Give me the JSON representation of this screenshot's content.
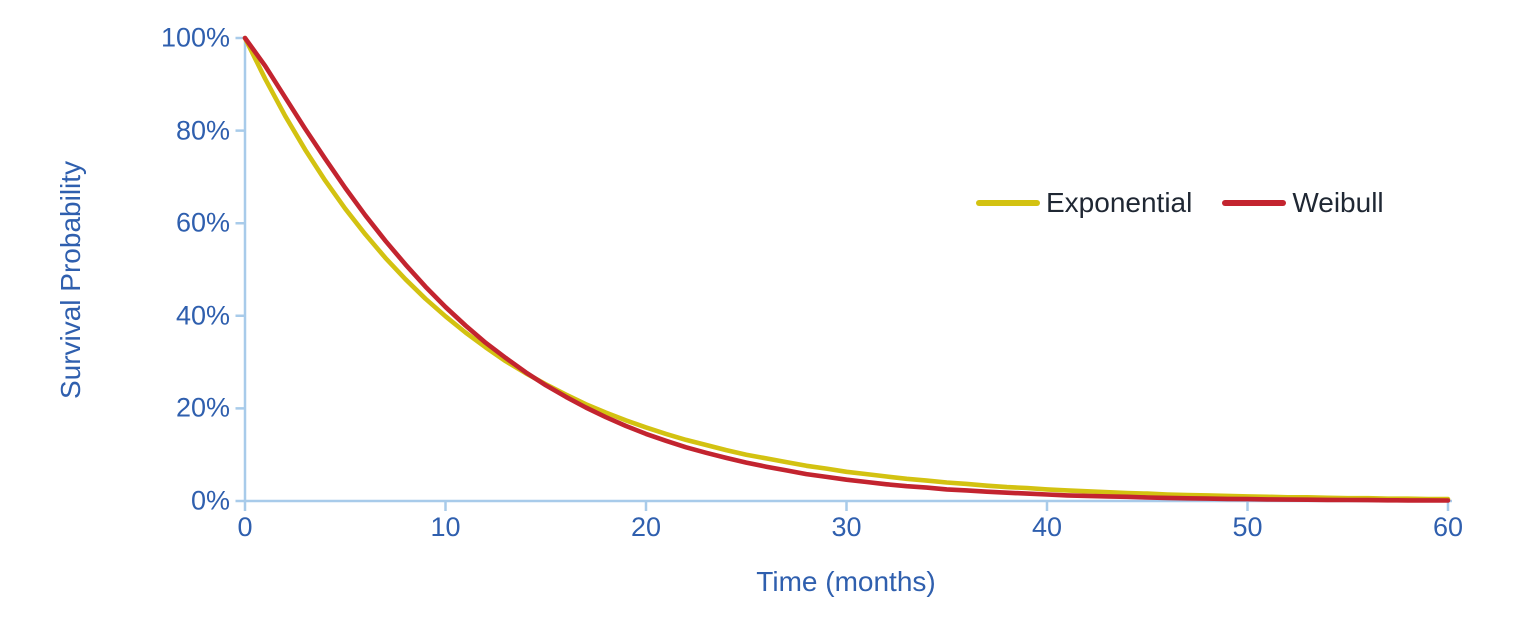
{
  "chart_data": {
    "type": "line",
    "title": "",
    "xlabel": "Time (months)",
    "ylabel": "Survival Probability",
    "xlim": [
      0,
      60
    ],
    "ylim": [
      0,
      100
    ],
    "grid": false,
    "legend_position": "upper-right-inside",
    "x_ticks": [
      0,
      10,
      20,
      30,
      40,
      50,
      60
    ],
    "y_ticks_percent": [
      0,
      20,
      40,
      60,
      80,
      100
    ],
    "x": [
      0,
      1,
      2,
      3,
      4,
      5,
      6,
      7,
      8,
      9,
      10,
      11,
      12,
      13,
      14,
      15,
      16,
      17,
      18,
      19,
      20,
      21,
      22,
      23,
      24,
      25,
      26,
      27,
      28,
      29,
      30,
      31,
      32,
      33,
      34,
      35,
      36,
      37,
      38,
      39,
      40,
      41,
      42,
      43,
      44,
      45,
      46,
      47,
      48,
      49,
      50,
      51,
      52,
      53,
      54,
      55,
      56,
      57,
      58,
      59,
      60
    ],
    "series": [
      {
        "name": "Exponential",
        "color": "#D3C211",
        "values": [
          100,
          91.2,
          83.2,
          75.9,
          69.2,
          63.1,
          57.6,
          52.5,
          47.9,
          43.7,
          39.9,
          36.4,
          33.2,
          30.2,
          27.6,
          25.2,
          23,
          20.9,
          19.1,
          17.4,
          15.9,
          14.5,
          13.2,
          12.1,
          11,
          10,
          9.2,
          8.4,
          7.6,
          7,
          6.3,
          5.8,
          5.3,
          4.8,
          4.4,
          4,
          3.7,
          3.3,
          3,
          2.8,
          2.5,
          2.3,
          2.1,
          1.9,
          1.7,
          1.6,
          1.4,
          1.3,
          1.2,
          1.1,
          1,
          0.9,
          0.8,
          0.8,
          0.7,
          0.6,
          0.6,
          0.5,
          0.5,
          0.4,
          0.4
        ]
      },
      {
        "name": "Weibull",
        "color": "#C3242F",
        "values": [
          100,
          94,
          87.2,
          80.4,
          73.9,
          67.6,
          61.7,
          56.2,
          51.1,
          46.3,
          41.9,
          37.9,
          34.2,
          30.9,
          27.8,
          25,
          22.5,
          20.2,
          18.1,
          16.2,
          14.5,
          13,
          11.6,
          10.4,
          9.3,
          8.3,
          7.4,
          6.6,
          5.8,
          5.2,
          4.6,
          4.1,
          3.6,
          3.2,
          2.9,
          2.5,
          2.3,
          2,
          1.8,
          1.6,
          1.4,
          1.2,
          1.1,
          1,
          0.9,
          0.75,
          0.66,
          0.58,
          0.51,
          0.45,
          0.4,
          0.35,
          0.31,
          0.27,
          0.24,
          0.21,
          0.19,
          0.16,
          0.14,
          0.13,
          0.11
        ]
      }
    ]
  },
  "axes": {
    "y_title": "Survival Probability",
    "x_title": "Time (months)",
    "y_tick_labels": [
      "100%",
      "80%",
      "60%",
      "40%",
      "20%",
      "0%"
    ],
    "x_tick_labels": [
      "0",
      "10",
      "20",
      "30",
      "40",
      "50",
      "60"
    ]
  },
  "legend": {
    "items": [
      {
        "label": "Exponential",
        "color": "#D3C211"
      },
      {
        "label": "Weibull",
        "color": "#C3242F"
      }
    ]
  },
  "colors": {
    "background": "#FFFFFF",
    "axis_line": "#A8CBEA",
    "tick_label_text": "#2F5FAE",
    "axis_title_text": "#2F5FAE",
    "legend_text": "#1F2733",
    "exponential_line": "#D3C211",
    "weibull_line": "#C3242F"
  }
}
